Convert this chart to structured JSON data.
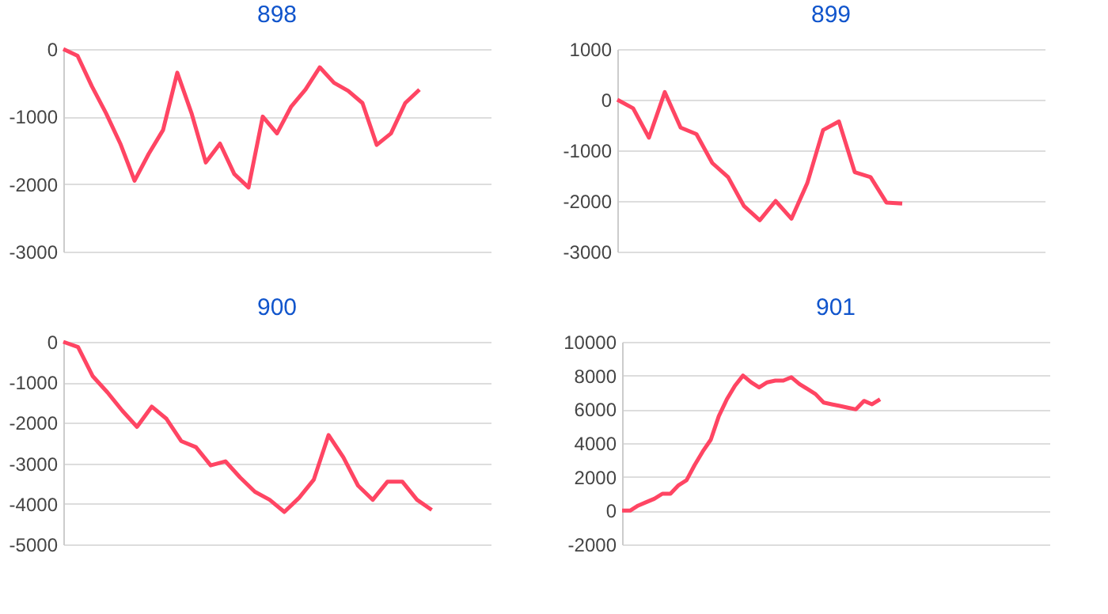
{
  "chart_data": [
    {
      "type": "line",
      "title": "898",
      "categories": [
        null,
        null,
        null,
        null,
        null,
        null,
        null,
        null,
        null,
        null,
        null,
        null,
        null,
        null,
        null,
        null,
        null,
        null,
        null,
        null,
        null,
        null,
        null,
        null,
        null,
        null,
        null,
        null,
        null,
        null,
        null
      ],
      "series": [
        {
          "color": "#ff4563",
          "values": [
            0,
            -100,
            -550,
            -950,
            -1400,
            -1950,
            -1550,
            -1200,
            -350,
            -950,
            -1680,
            -1400,
            -1850,
            -2050,
            -1000,
            -1250,
            -850,
            -600,
            -270,
            -500,
            -620,
            -800,
            -1420,
            -1250,
            -800,
            -600,
            null,
            null,
            null,
            null,
            null
          ]
        }
      ],
      "ylim": [
        -3000,
        0
      ],
      "yticks": [
        -3000,
        -2000,
        -1000,
        0
      ],
      "grid": "y",
      "tick_labels": "y",
      "marker": "none",
      "line_style": "solid"
    },
    {
      "type": "line",
      "title": "899",
      "categories": [
        null,
        null,
        null,
        null,
        null,
        null,
        null,
        null,
        null,
        null,
        null,
        null,
        null,
        null,
        null,
        null,
        null,
        null,
        null,
        null,
        null,
        null,
        null,
        null,
        null,
        null,
        null,
        null
      ],
      "series": [
        {
          "color": "#ff4563",
          "values": [
            0,
            -170,
            -750,
            150,
            -550,
            -680,
            -1250,
            -1530,
            -2100,
            -2380,
            -2000,
            -2350,
            -1650,
            -600,
            -430,
            -1430,
            -1530,
            -2030,
            -2050,
            null,
            null,
            null,
            null,
            null,
            null,
            null,
            null,
            null
          ]
        }
      ],
      "ylim": [
        -3000,
        1000
      ],
      "yticks": [
        -3000,
        -2000,
        -1000,
        0,
        1000
      ],
      "grid": "y",
      "tick_labels": "y",
      "marker": "none",
      "line_style": "solid"
    },
    {
      "type": "line",
      "title": "900",
      "categories": [
        null,
        null,
        null,
        null,
        null,
        null,
        null,
        null,
        null,
        null,
        null,
        null,
        null,
        null,
        null,
        null,
        null,
        null,
        null,
        null,
        null,
        null,
        null,
        null,
        null,
        null,
        null,
        null,
        null,
        null
      ],
      "series": [
        {
          "color": "#ff4563",
          "values": [
            0,
            -130,
            -850,
            -1250,
            -1700,
            -2100,
            -1600,
            -1900,
            -2450,
            -2600,
            -3050,
            -2950,
            -3350,
            -3700,
            -3900,
            -4200,
            -3850,
            -3400,
            -2300,
            -2850,
            -3550,
            -3900,
            -3450,
            -3450,
            -3900,
            -4150,
            null,
            null,
            null,
            null
          ]
        }
      ],
      "ylim": [
        -5000,
        0
      ],
      "yticks": [
        -5000,
        -4000,
        -3000,
        -2000,
        -1000,
        0
      ],
      "grid": "y",
      "tick_labels": "y",
      "marker": "none",
      "line_style": "solid"
    },
    {
      "type": "line",
      "title": "901",
      "categories": [
        null,
        null,
        null,
        null,
        null,
        null,
        null,
        null,
        null,
        null,
        null,
        null,
        null,
        null,
        null,
        null,
        null,
        null,
        null,
        null,
        null,
        null,
        null,
        null,
        null,
        null,
        null,
        null,
        null,
        null,
        null,
        null,
        null,
        null,
        null,
        null,
        null,
        null,
        null,
        null,
        null,
        null,
        null,
        null,
        null,
        null,
        null,
        null,
        null,
        null,
        null,
        null,
        null,
        null
      ],
      "series": [
        {
          "color": "#ff4563",
          "values": [
            0,
            0,
            300,
            500,
            700,
            1000,
            1000,
            1500,
            1800,
            2700,
            3500,
            4200,
            5600,
            6600,
            7400,
            8000,
            7600,
            7300,
            7600,
            7700,
            7700,
            7900,
            7500,
            7200,
            6900,
            6400,
            6300,
            6200,
            6100,
            6000,
            6500,
            6300,
            6600,
            null,
            null,
            null,
            null,
            null,
            null,
            null,
            null,
            null,
            null,
            null,
            null,
            null,
            null,
            null,
            null,
            null,
            null,
            null,
            null,
            null
          ]
        }
      ],
      "ylim": [
        -2000,
        10000
      ],
      "yticks": [
        -2000,
        0,
        2000,
        4000,
        6000,
        8000,
        10000
      ],
      "grid": "y",
      "tick_labels": "y",
      "marker": "none",
      "line_style": "solid"
    }
  ]
}
